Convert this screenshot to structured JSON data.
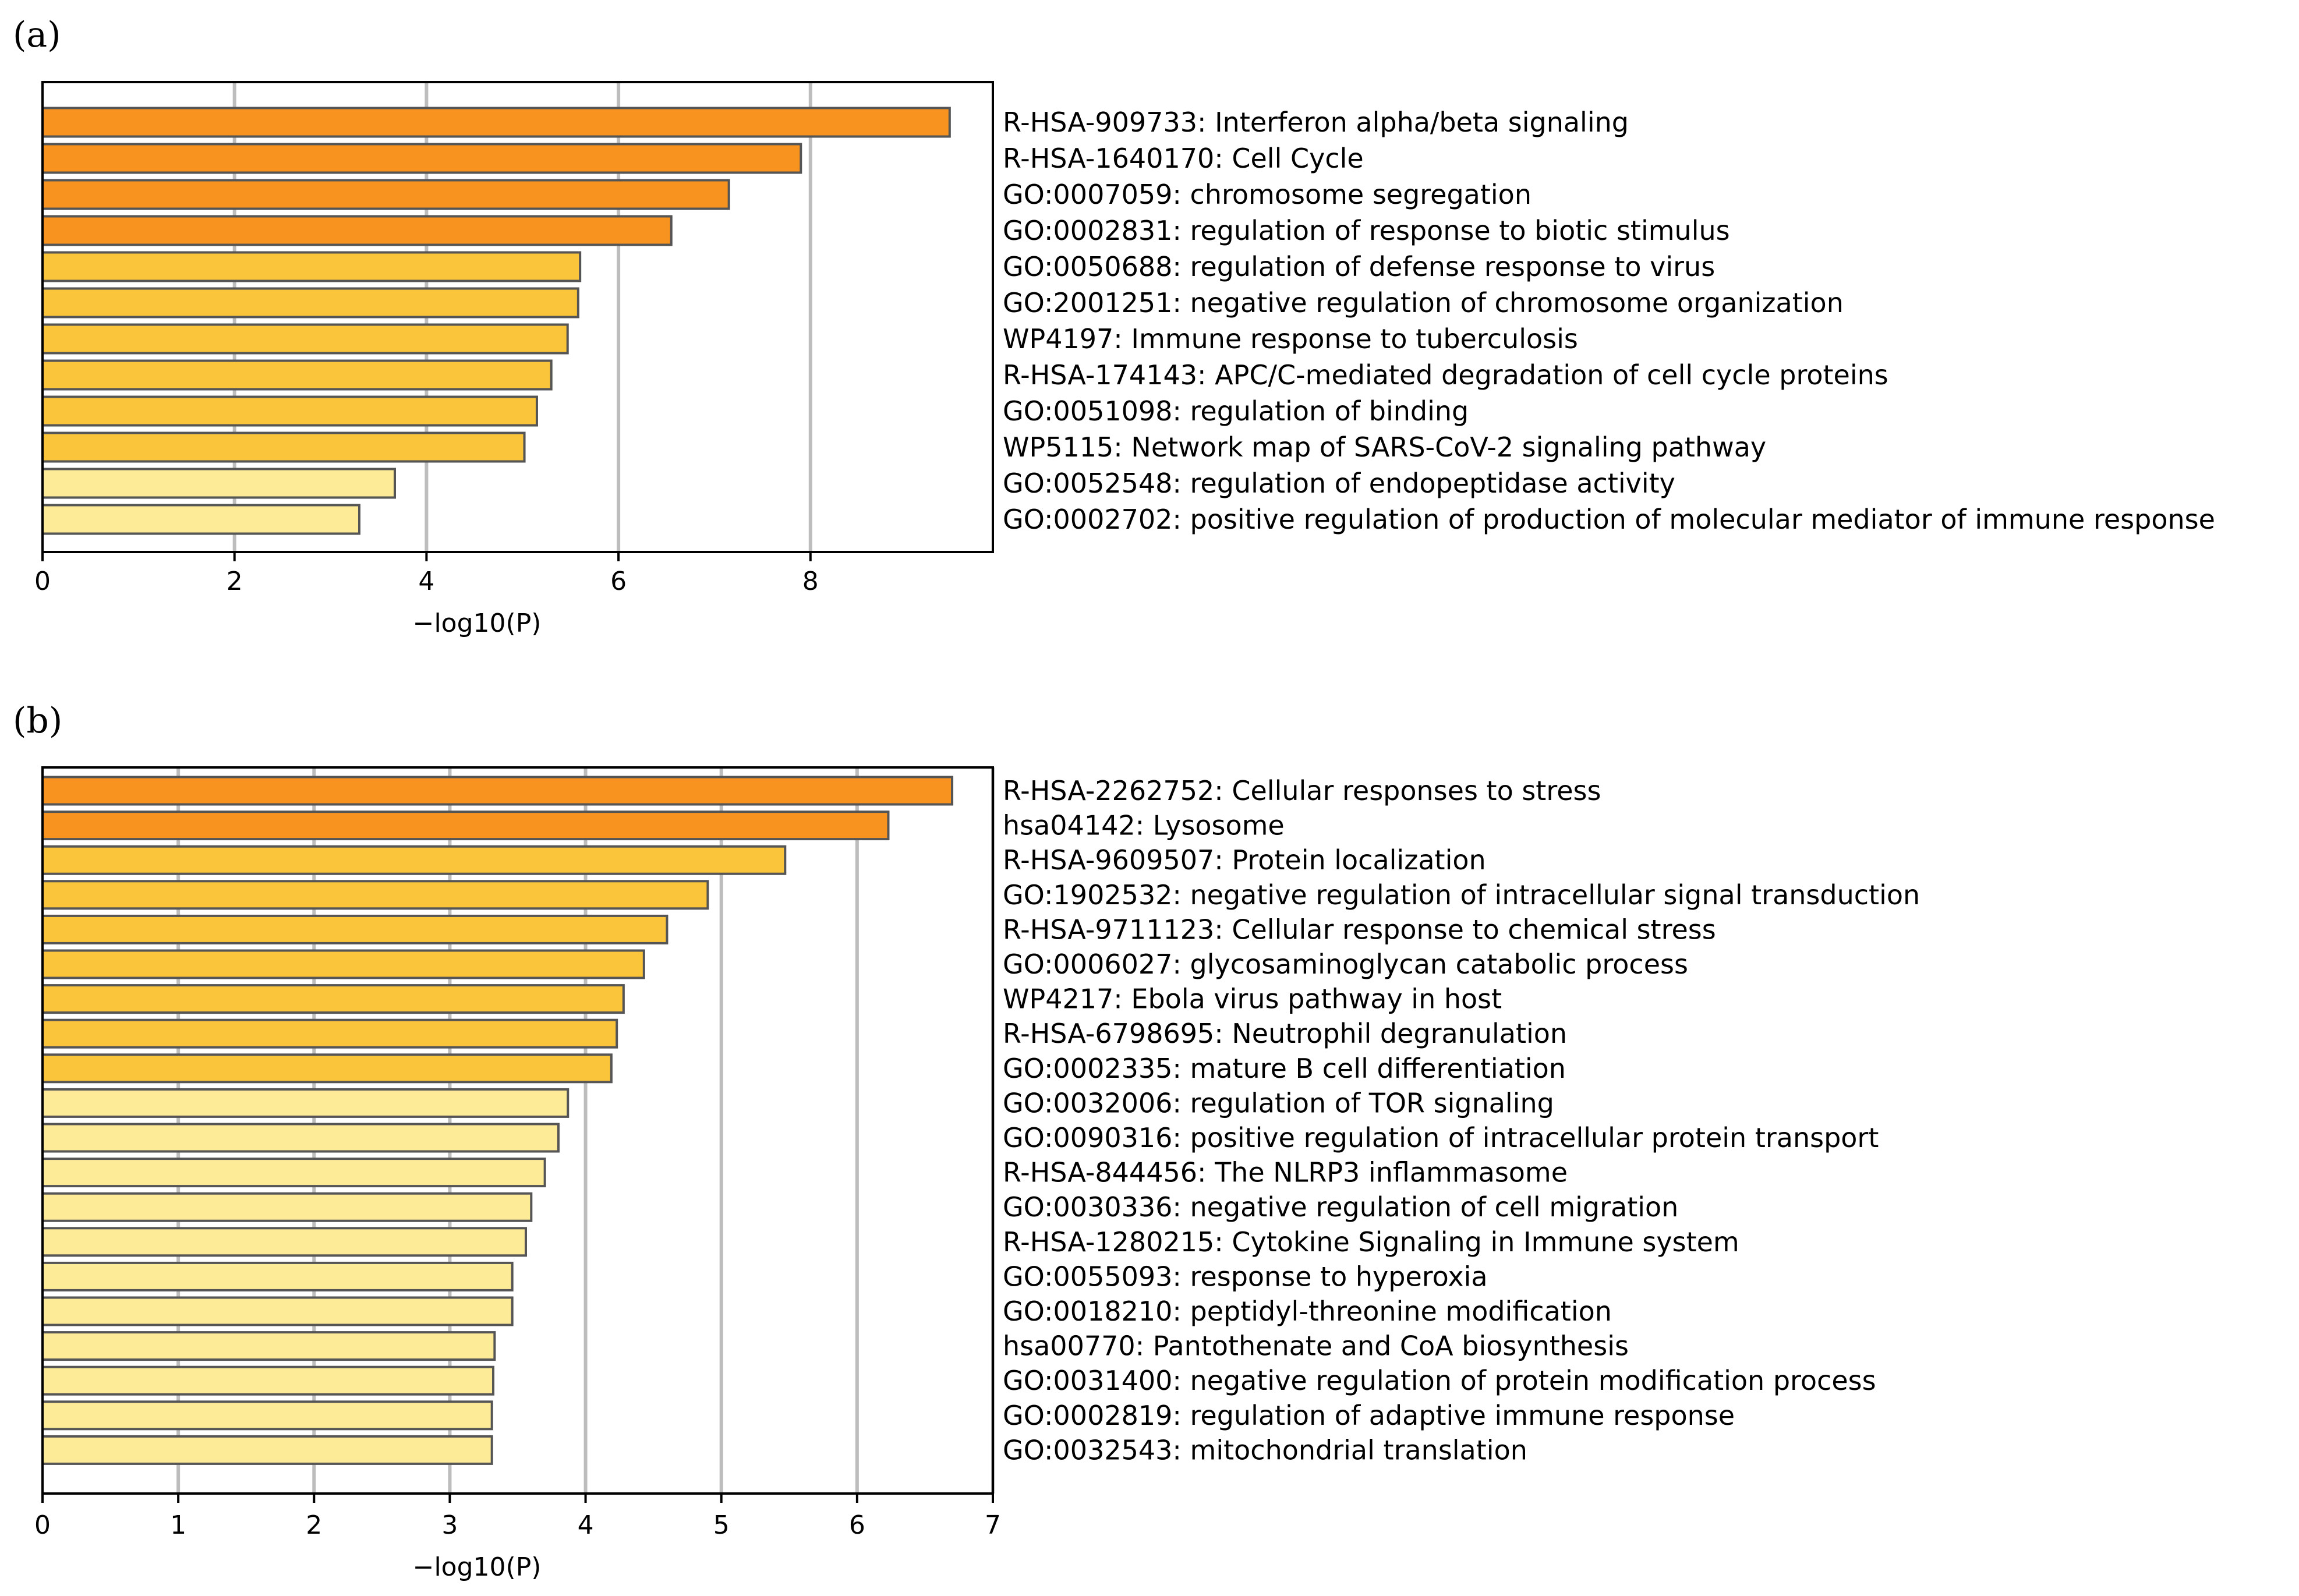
{
  "colors": {
    "dark": "#F7931E",
    "medium": "#FBC53B",
    "light": "#FEEB98"
  },
  "chart_data": [
    {
      "type": "bar",
      "orientation": "horizontal",
      "panel_label": "(a)",
      "xlabel": "−log10(P)",
      "xlim": [
        0,
        9.9
      ],
      "xticks": [
        0,
        2,
        4,
        6,
        8
      ],
      "grid": true,
      "categories": [
        "R-HSA-909733: Interferon alpha/beta signaling",
        "R-HSA-1640170: Cell Cycle",
        "GO:0007059: chromosome segregation",
        "GO:0002831: regulation of response to biotic stimulus",
        "GO:0050688: regulation of defense response to virus",
        "GO:2001251: negative regulation of chromosome organization",
        "WP4197: Immune response to tuberculosis",
        "R-HSA-174143: APC/C-mediated degradation of cell cycle proteins",
        "GO:0051098: regulation of binding",
        "WP5115: Network map of SARS-CoV-2 signaling pathway",
        "GO:0052548: regulation of endopeptidase activity",
        "GO:0002702: positive regulation of production of molecular mediator of immune response"
      ],
      "values": [
        9.45,
        7.9,
        7.15,
        6.55,
        5.6,
        5.58,
        5.47,
        5.3,
        5.15,
        5.02,
        3.67,
        3.3
      ],
      "color_levels": [
        "dark",
        "dark",
        "dark",
        "dark",
        "medium",
        "medium",
        "medium",
        "medium",
        "medium",
        "medium",
        "light",
        "light"
      ]
    },
    {
      "type": "bar",
      "orientation": "horizontal",
      "panel_label": "(b)",
      "xlabel": "−log10(P)",
      "xlim": [
        0,
        7
      ],
      "xticks": [
        0,
        1,
        2,
        3,
        4,
        5,
        6,
        7
      ],
      "grid": true,
      "categories": [
        "R-HSA-2262752: Cellular responses to stress",
        "hsa04142: Lysosome",
        "R-HSA-9609507: Protein localization",
        "GO:1902532: negative regulation of intracellular signal transduction",
        "R-HSA-9711123: Cellular response to chemical stress",
        "GO:0006027: glycosaminoglycan catabolic process",
        "WP4217: Ebola virus pathway in host",
        "R-HSA-6798695: Neutrophil degranulation",
        "GO:0002335: mature B cell differentiation",
        "GO:0032006: regulation of TOR signaling",
        "GO:0090316: positive regulation of intracellular protein transport",
        "R-HSA-844456: The NLRP3 inflammasome",
        "GO:0030336: negative regulation of cell migration",
        "R-HSA-1280215: Cytokine Signaling in Immune system",
        "GO:0055093: response to hyperoxia",
        "GO:0018210: peptidyl-threonine modification",
        "hsa00770: Pantothenate and CoA biosynthesis",
        "GO:0031400: negative regulation of protein modification process",
        "GO:0002819: regulation of adaptive immune response",
        "GO:0032543: mitochondrial translation"
      ],
      "values": [
        6.7,
        6.23,
        5.47,
        4.9,
        4.6,
        4.43,
        4.28,
        4.23,
        4.19,
        3.87,
        3.8,
        3.7,
        3.6,
        3.56,
        3.46,
        3.46,
        3.33,
        3.32,
        3.31,
        3.31
      ],
      "color_levels": [
        "dark",
        "dark",
        "medium",
        "medium",
        "medium",
        "medium",
        "medium",
        "medium",
        "medium",
        "light",
        "light",
        "light",
        "light",
        "light",
        "light",
        "light",
        "light",
        "light",
        "light",
        "light"
      ]
    }
  ]
}
